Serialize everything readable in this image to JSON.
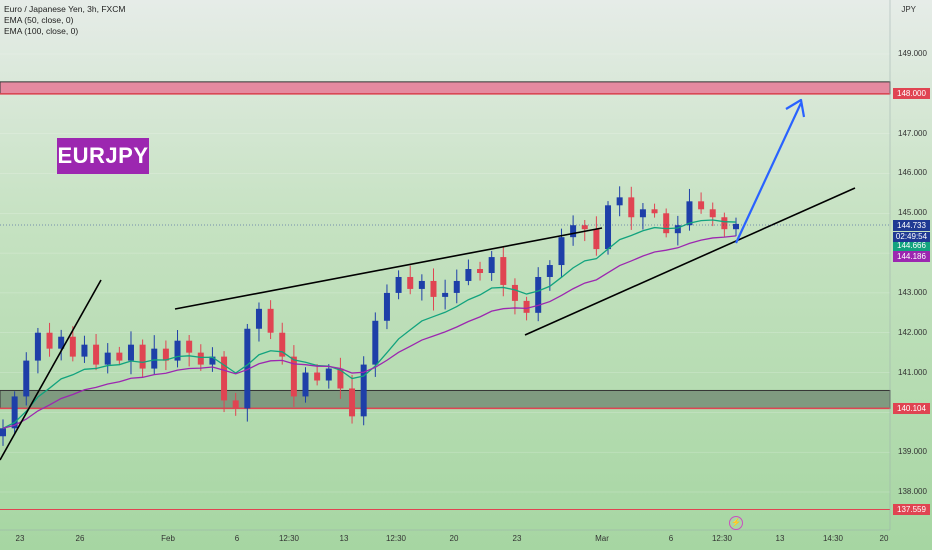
{
  "header": {
    "symbol_line": "Euro / Japanese Yen, 3h, FXCM",
    "ema1": "EMA (50, close, 0)",
    "ema2": "EMA (100, close, 0)"
  },
  "label_box": "EURJPY",
  "currency": "JPY",
  "colors": {
    "up": "#1e3fa8",
    "down": "#e04452",
    "ema50": "#12a37e",
    "ema100": "#9c27b0",
    "zone_red": "#e04452",
    "arrow": "#2962ff",
    "price_label": "#1f3a93"
  },
  "price_labels": [
    {
      "text": "148.000",
      "color": "#e04452",
      "value": 148.0
    },
    {
      "text": "144.733",
      "color": "#1f3a93",
      "value": 144.733
    },
    {
      "text": "144.666",
      "color": "#12a37e",
      "value": 144.666
    },
    {
      "text": "144.186",
      "color": "#9c27b0",
      "value": 144.186
    },
    {
      "text": "140.104",
      "color": "#e04452",
      "value": 140.104
    },
    {
      "text": "137.559",
      "color": "#e04452",
      "value": 137.559
    }
  ],
  "countdown": "02:49:54",
  "chart_data": {
    "type": "candlestick",
    "y_axis_ticks": [
      {
        "label": "149.000",
        "value": 149
      },
      {
        "label": "147.000",
        "value": 147
      },
      {
        "label": "146.000",
        "value": 146
      },
      {
        "label": "145.000",
        "value": 145
      },
      {
        "label": "143.000",
        "value": 143
      },
      {
        "label": "142.000",
        "value": 142
      },
      {
        "label": "141.000",
        "value": 141
      },
      {
        "label": "139.000",
        "value": 139
      },
      {
        "label": "138.000",
        "value": 138
      }
    ],
    "x_axis_ticks": [
      "23",
      "26",
      "Feb",
      "6",
      "12:30",
      "13",
      "12:30",
      "20",
      "23",
      "Mar",
      "6",
      "12:30",
      "13",
      "14:30",
      "20"
    ],
    "series": [
      {
        "name": "EMA (50, close, 0)",
        "color": "#12a37e"
      },
      {
        "name": "EMA (100, close, 0)",
        "color": "#9c27b0"
      }
    ],
    "resistance_zone": [
      148.0,
      148.3
    ],
    "support_zone": [
      140.1,
      140.55
    ],
    "last_price": 144.733,
    "approx_closes": [
      139.6,
      140.4,
      141.3,
      142.0,
      141.6,
      141.9,
      141.4,
      141.7,
      141.2,
      141.5,
      141.3,
      141.7,
      141.1,
      141.6,
      141.3,
      141.8,
      141.5,
      141.2,
      141.4,
      140.3,
      140.1,
      142.1,
      142.6,
      142.0,
      141.4,
      140.4,
      141.0,
      140.8,
      141.1,
      140.6,
      139.9,
      141.2,
      142.3,
      143.0,
      143.4,
      143.1,
      143.3,
      142.9,
      143.0,
      143.3,
      143.6,
      143.5,
      143.9,
      143.2,
      142.8,
      142.5,
      143.4,
      143.7,
      144.4,
      144.7,
      144.6,
      144.1,
      145.2,
      145.4,
      144.9,
      145.1,
      145.0,
      144.5,
      144.7,
      145.3,
      145.1,
      144.9,
      144.6,
      144.733
    ]
  }
}
